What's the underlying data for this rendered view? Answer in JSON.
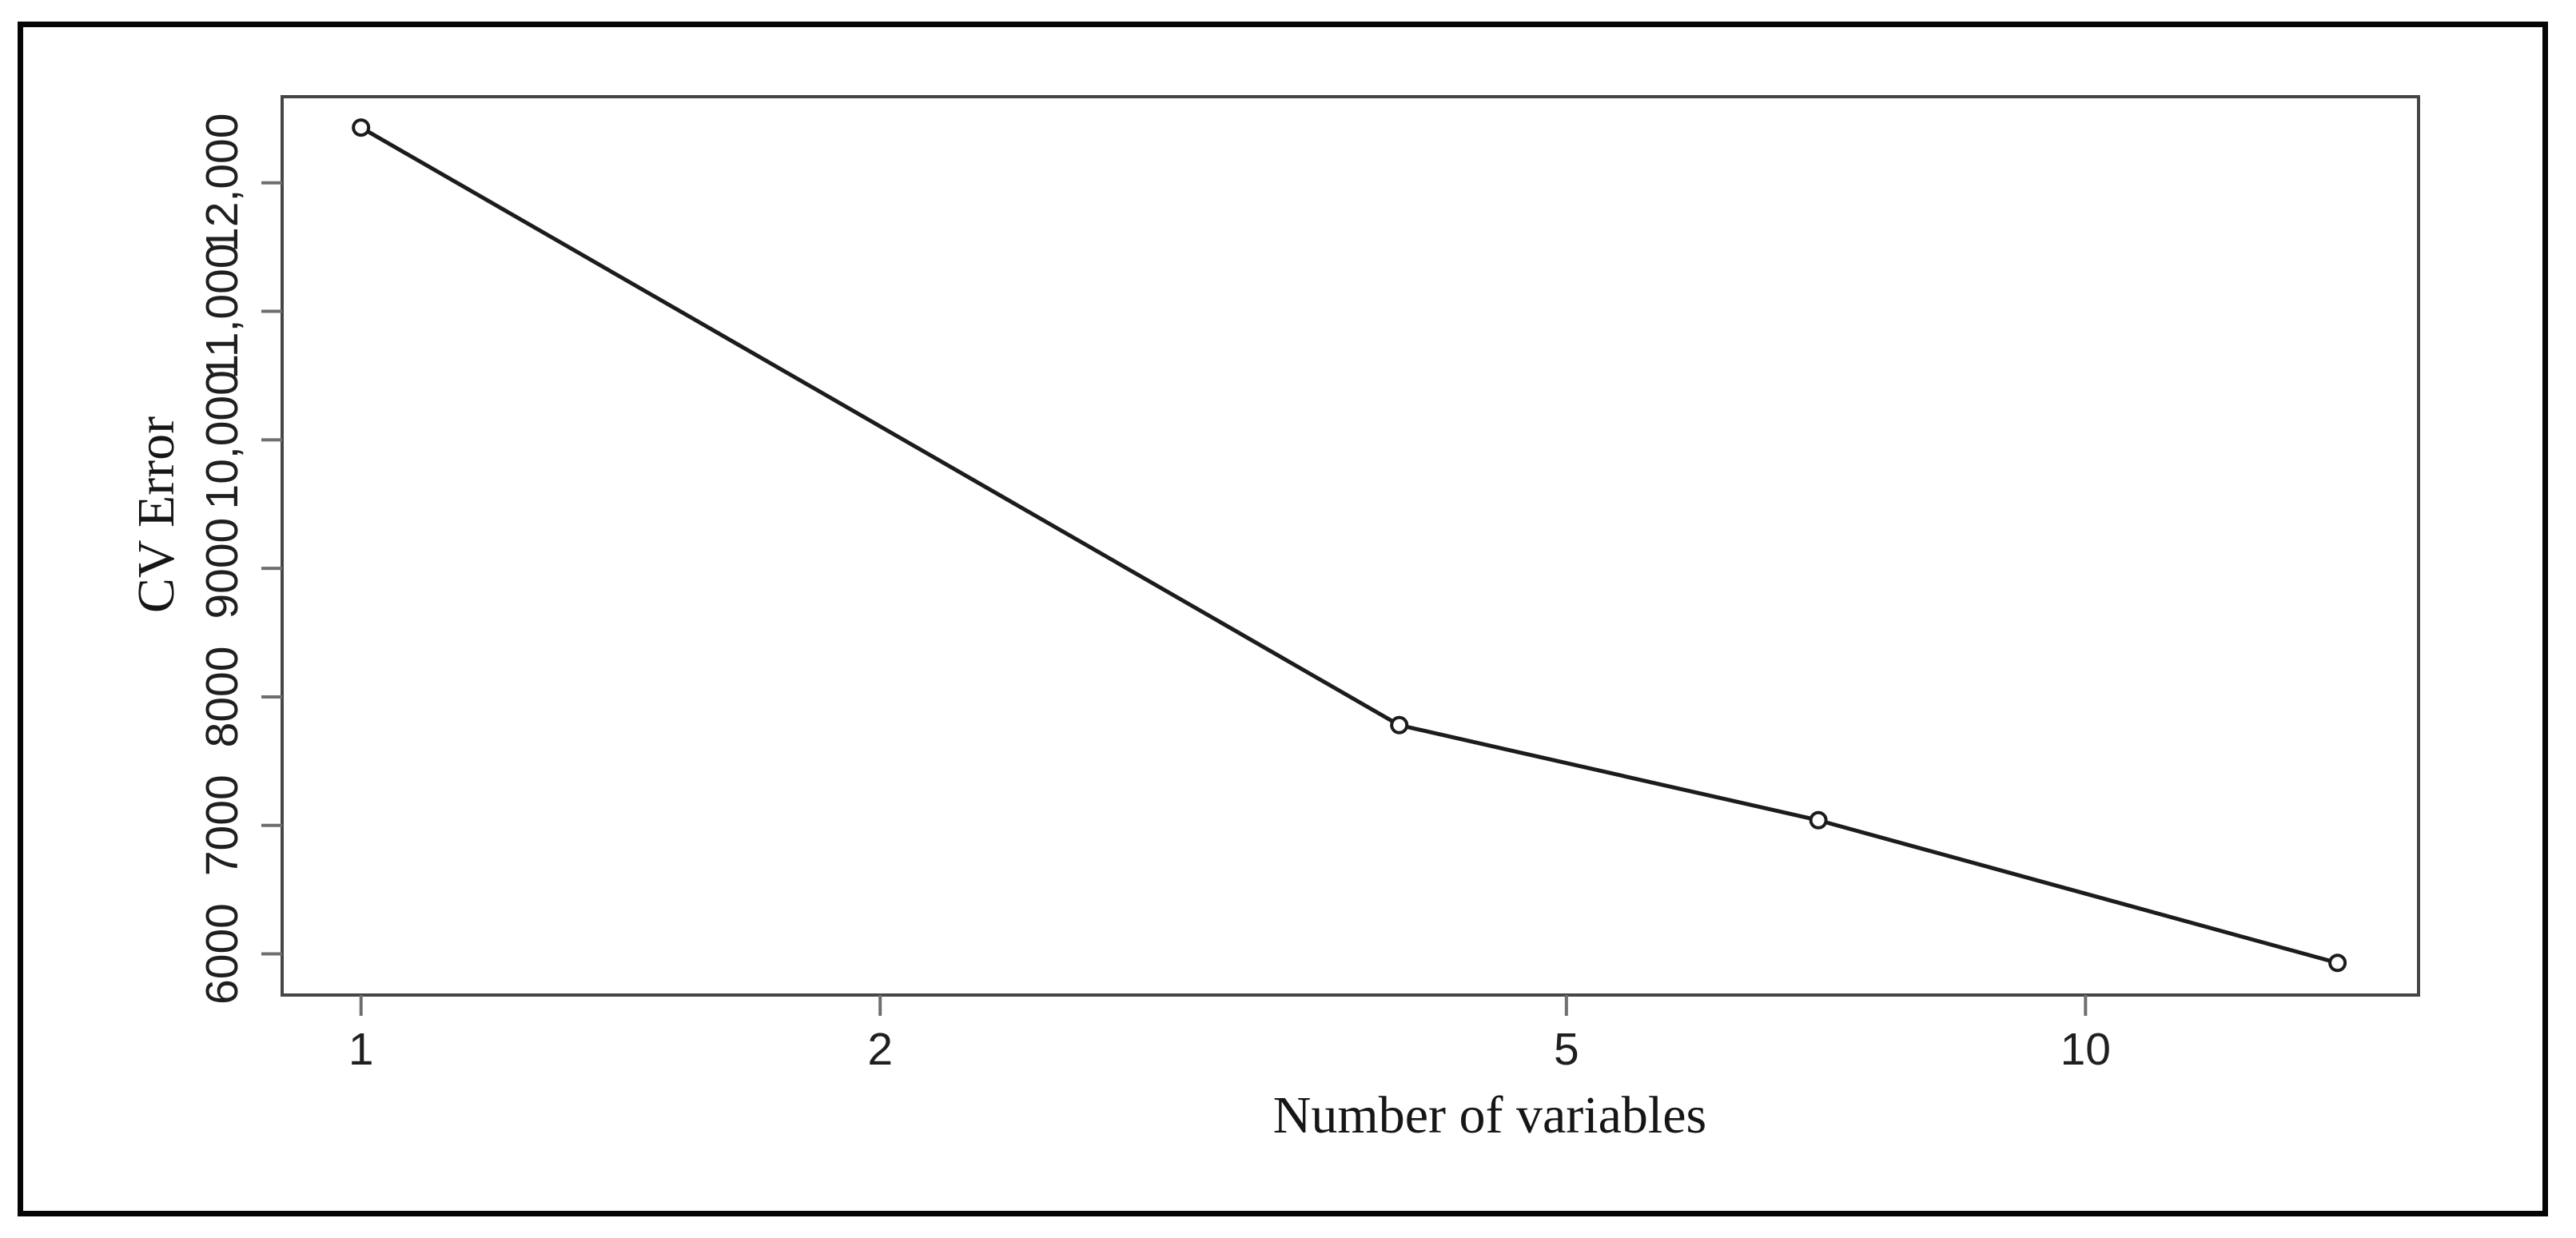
{
  "figure": {
    "background_color": "#ffffff",
    "frame_color": "#050505"
  },
  "chart_data": {
    "type": "line",
    "title": "",
    "xlabel": "Number of variables",
    "ylabel": "CV Error",
    "x_scale": "log10",
    "xlim": [
      0.9,
      15.6
    ],
    "ylim": [
      5680,
      12670
    ],
    "grid": false,
    "legend": "none",
    "marker": "open-circle",
    "line_color": "#1c1c1c",
    "marker_color": "#1c1c1c",
    "axis_box_color": "#454545",
    "tick_color": "#6e6e6e",
    "tick_label_color": "#1f1f1f",
    "x_ticks": [
      {
        "value": 1,
        "label": "1"
      },
      {
        "value": 2,
        "label": "2"
      },
      {
        "value": 5,
        "label": "5"
      },
      {
        "value": 10,
        "label": "10"
      }
    ],
    "y_ticks": [
      {
        "value": 6000,
        "label": "6000"
      },
      {
        "value": 7000,
        "label": "7000"
      },
      {
        "value": 8000,
        "label": "8000"
      },
      {
        "value": 9000,
        "label": "9000"
      },
      {
        "value": 10000,
        "label": "10,000"
      },
      {
        "value": 11000,
        "label": "11,000"
      },
      {
        "value": 12000,
        "label": "12,000"
      }
    ],
    "series": [
      {
        "name": "CV error",
        "points": [
          {
            "x": 1,
            "y": 12430
          },
          {
            "x": 4,
            "y": 7780
          },
          {
            "x": 7,
            "y": 7040
          },
          {
            "x": 14,
            "y": 5930
          }
        ]
      }
    ]
  }
}
